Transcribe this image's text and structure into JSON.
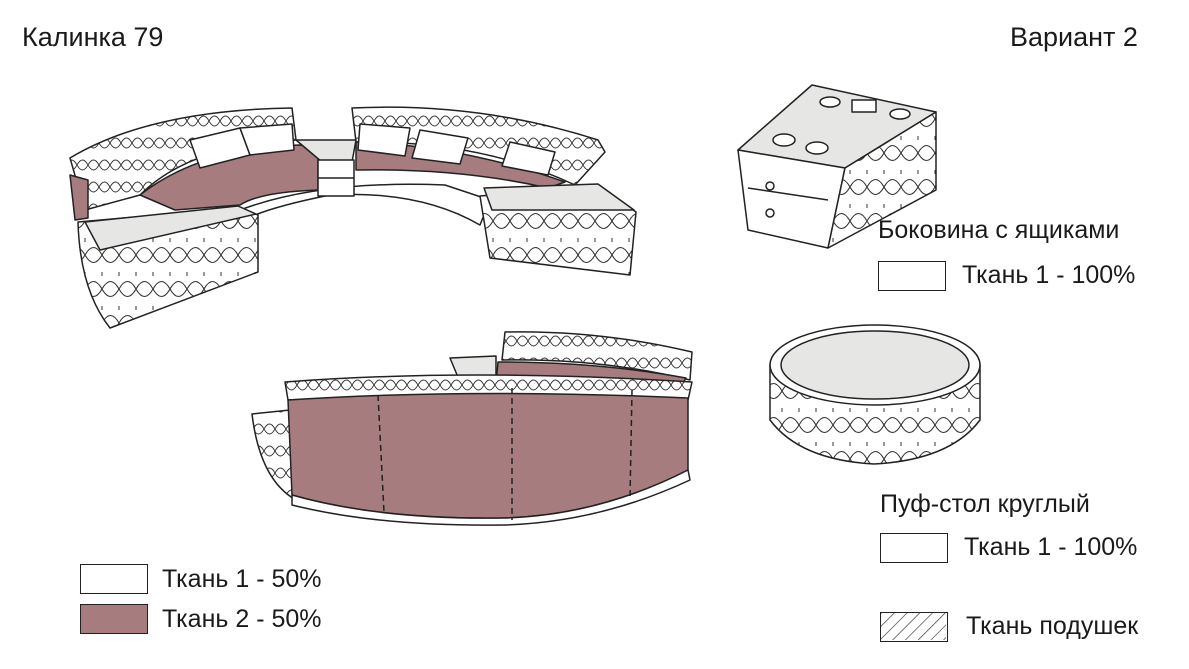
{
  "header": {
    "model_name": "Калинка 79",
    "variant": "Вариант 2"
  },
  "colors": {
    "fabric_1": "#ffffff",
    "fabric_2": "#a67c7e",
    "top_panel": "#e6e7e5",
    "outline": "#222222"
  },
  "legend_main": [
    {
      "label": "Ткань 1 - 50%",
      "color": "#ffffff"
    },
    {
      "label": "Ткань 2 - 50%",
      "color": "#a67c7e"
    }
  ],
  "side_module": {
    "title": "Боковина с ящиками",
    "fabric_label": "Ткань 1 - 100%"
  },
  "pouf": {
    "title": "Пуф-стол круглый",
    "fabric_label": "Ткань 1 - 100%"
  },
  "cushion_legend": {
    "label": "Ткань подушек"
  }
}
